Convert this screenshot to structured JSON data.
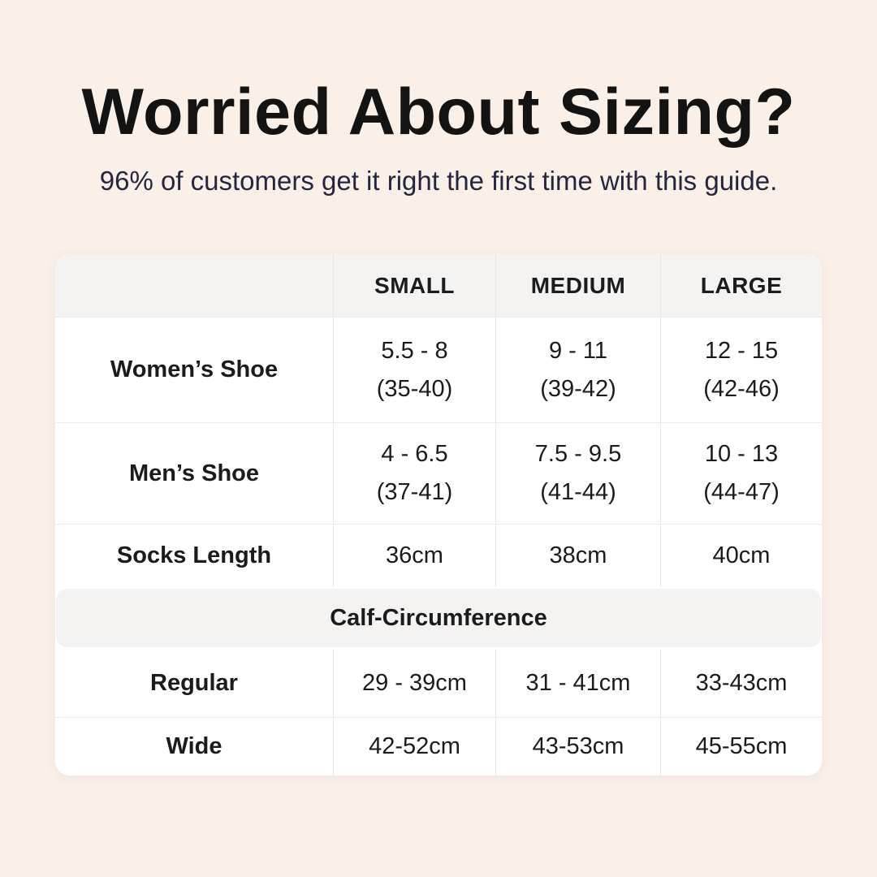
{
  "page": {
    "title": "Worried About Sizing?",
    "subtitle": "96% of customers get it right the first time with this guide."
  },
  "colors": {
    "background": "#FAF0E8",
    "card": "#FFFFFF",
    "header_band": "#F4F3F1",
    "divider": "#E9E7E4",
    "title_text": "#131313",
    "subtitle_text": "#25253F"
  },
  "table": {
    "header": {
      "blank": "",
      "small": "SMALL",
      "medium": "MEDIUM",
      "large": "LARGE"
    },
    "rows": [
      {
        "label": "Women’s Shoe",
        "small": {
          "line1": "5.5 - 8",
          "line2": "(35-40)"
        },
        "medium": {
          "line1": "9 - 11",
          "line2": "(39-42)"
        },
        "large": {
          "line1": "12 - 15",
          "line2": "(42-46)"
        }
      },
      {
        "label": "Men’s Shoe",
        "small": {
          "line1": "4 - 6.5",
          "line2": "(37-41)"
        },
        "medium": {
          "line1": "7.5 - 9.5",
          "line2": "(41-44)"
        },
        "large": {
          "line1": "10 - 13",
          "line2": "(44-47)"
        }
      },
      {
        "label": "Socks Length",
        "small": {
          "line1": "36cm"
        },
        "medium": {
          "line1": "38cm"
        },
        "large": {
          "line1": "40cm"
        }
      }
    ],
    "section": {
      "title": "Calf-Circumference",
      "rows": [
        {
          "label": "Regular",
          "small": "29 - 39cm",
          "medium": "31 - 41cm",
          "large": "33-43cm"
        },
        {
          "label": "Wide",
          "small": "42-52cm",
          "medium": "43-53cm",
          "large": "45-55cm"
        }
      ]
    }
  },
  "chart_data": {
    "type": "table",
    "title": "Worried About Sizing?",
    "subtitle": "96% of customers get it right the first time with this guide.",
    "columns": [
      "",
      "SMALL",
      "MEDIUM",
      "LARGE"
    ],
    "rows": [
      [
        "Women’s Shoe",
        "5.5 - 8 (35-40)",
        "9 - 11 (39-42)",
        "12 - 15 (42-46)"
      ],
      [
        "Men’s Shoe",
        "4 - 6.5 (37-41)",
        "7.5 - 9.5 (41-44)",
        "10 - 13 (44-47)"
      ],
      [
        "Socks Length",
        "36cm",
        "38cm",
        "40cm"
      ],
      [
        "Calf-Circumference (section header, spans all columns)",
        "",
        "",
        ""
      ],
      [
        "Regular",
        "29 - 39cm",
        "31 - 41cm",
        "33-43cm"
      ],
      [
        "Wide",
        "42-52cm",
        "43-53cm",
        "45-55cm"
      ]
    ],
    "layout": {
      "section_header_row_index": 3,
      "first_column_is_labels": true
    }
  }
}
